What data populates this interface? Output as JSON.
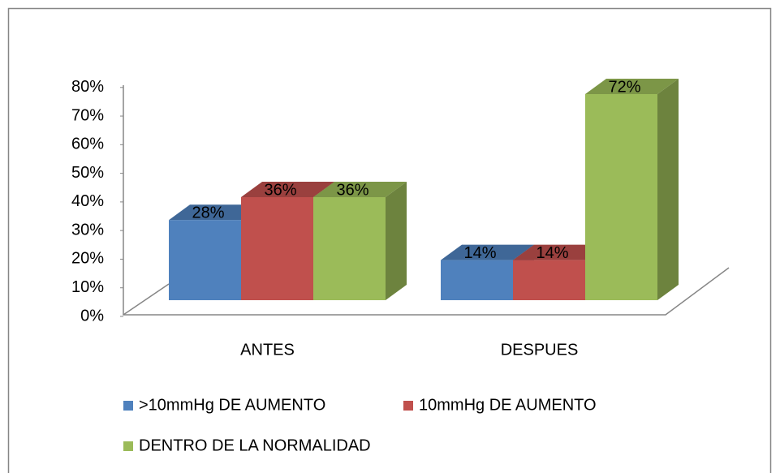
{
  "chart_data": {
    "type": "bar3d",
    "categories": [
      "ANTES",
      "DESPUES"
    ],
    "series": [
      {
        "name": ">10mmHg DE AUMENTO",
        "color": "#4f81bd",
        "values": [
          28,
          14
        ],
        "value_labels": [
          "28%",
          "14%"
        ]
      },
      {
        "name": "10mmHg DE AUMENTO",
        "color": "#c0504d",
        "values": [
          36,
          14
        ],
        "value_labels": [
          "36%",
          "14%"
        ]
      },
      {
        "name": "DENTRO DE LA NORMALIDAD",
        "color": "#9bbb59",
        "values": [
          36,
          72
        ],
        "value_labels": [
          "36%",
          "72%"
        ]
      }
    ],
    "ylim": [
      0,
      80
    ],
    "yticks": [
      {
        "value": 0,
        "label": "0%"
      },
      {
        "value": 10,
        "label": "10%"
      },
      {
        "value": 20,
        "label": "20%"
      },
      {
        "value": 30,
        "label": "30%"
      },
      {
        "value": 40,
        "label": "40%"
      },
      {
        "value": 50,
        "label": "50%"
      },
      {
        "value": 60,
        "label": "60%"
      },
      {
        "value": 70,
        "label": "70%"
      },
      {
        "value": 80,
        "label": "80%"
      }
    ],
    "legend": "bottom-left"
  }
}
